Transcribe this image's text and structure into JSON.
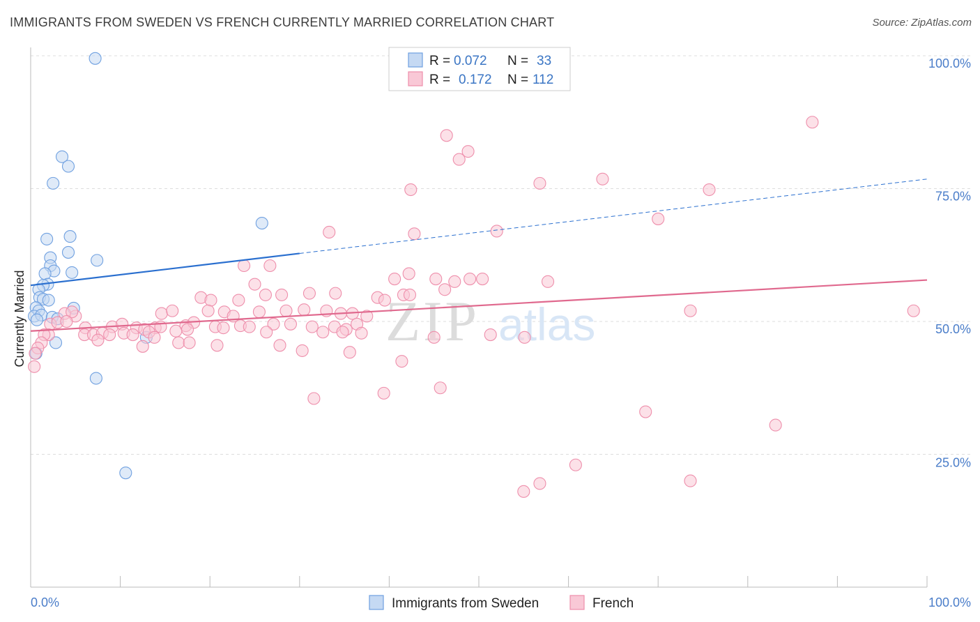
{
  "title": "IMMIGRANTS FROM SWEDEN VS FRENCH CURRENTLY MARRIED CORRELATION CHART",
  "source": "Source: ZipAtlas.com",
  "watermark": {
    "zip": "ZIP",
    "atlas": "atlas"
  },
  "chart_data": {
    "type": "scatter",
    "ylabel": "Currently Married",
    "xlabel": "",
    "xlim": [
      0,
      100
    ],
    "ylim": [
      0,
      100
    ],
    "x_tick_labels": [
      "0.0%",
      "100.0%"
    ],
    "y_tick_labels": [
      "25.0%",
      "50.0%",
      "75.0%",
      "100.0%"
    ],
    "y_tick_values": [
      25,
      50,
      75,
      100
    ],
    "grid": true,
    "legend_position": "top-center",
    "legend": [
      {
        "r_label": "R =",
        "r_value": "0.072",
        "n_label": "N =",
        "n_value": "33"
      },
      {
        "r_label": "R =",
        "r_value": "0.172",
        "n_label": "N =",
        "n_value": "112"
      }
    ],
    "series": [
      {
        "name": "Immigrants from Sweden",
        "color": "#6fa0e0",
        "fill": "#c5d9f3",
        "line_color": "#2a6fcf",
        "trend": {
          "x0": 0,
          "y0": 56.8,
          "x1": 30,
          "y1": 62.8,
          "dash_to_x": 100,
          "dash_to_y": 76.8
        },
        "points": [
          [
            7.2,
            99.5
          ],
          [
            3.5,
            81.0
          ],
          [
            4.2,
            79.2
          ],
          [
            2.5,
            76.0
          ],
          [
            25.8,
            68.5
          ],
          [
            1.8,
            65.5
          ],
          [
            4.4,
            66.0
          ],
          [
            4.2,
            63.0
          ],
          [
            7.4,
            61.5
          ],
          [
            2.2,
            62.0
          ],
          [
            2.2,
            60.5
          ],
          [
            2.6,
            59.5
          ],
          [
            4.6,
            59.2
          ],
          [
            1.6,
            59.0
          ],
          [
            1.9,
            57.0
          ],
          [
            1.4,
            56.8
          ],
          [
            0.9,
            56.0
          ],
          [
            1.0,
            54.5
          ],
          [
            1.4,
            54.2
          ],
          [
            2.0,
            54.0
          ],
          [
            0.6,
            52.6
          ],
          [
            0.9,
            52.0
          ],
          [
            4.8,
            52.5
          ],
          [
            0.4,
            51.0
          ],
          [
            1.2,
            51.2
          ],
          [
            2.4,
            50.8
          ],
          [
            0.7,
            50.3
          ],
          [
            3.0,
            50.5
          ],
          [
            2.8,
            46.0
          ],
          [
            12.9,
            47.0
          ],
          [
            0.6,
            44.0
          ],
          [
            7.3,
            39.3
          ],
          [
            10.6,
            21.5
          ]
        ]
      },
      {
        "name": "French",
        "color": "#ee8eab",
        "fill": "#f9c8d6",
        "line_color": "#e0698e",
        "trend": {
          "x0": 0,
          "y0": 48.2,
          "x1": 100,
          "y1": 57.8
        },
        "points": [
          [
            87.2,
            87.5
          ],
          [
            46.4,
            85.0
          ],
          [
            48.8,
            82.0
          ],
          [
            47.8,
            80.5
          ],
          [
            56.8,
            76.0
          ],
          [
            63.8,
            76.8
          ],
          [
            42.4,
            74.8
          ],
          [
            75.7,
            74.8
          ],
          [
            70.0,
            69.3
          ],
          [
            33.3,
            66.8
          ],
          [
            42.8,
            66.5
          ],
          [
            52.0,
            67.0
          ],
          [
            23.8,
            60.5
          ],
          [
            26.7,
            60.5
          ],
          [
            42.2,
            59.0
          ],
          [
            40.6,
            58.0
          ],
          [
            45.2,
            58.0
          ],
          [
            47.3,
            57.5
          ],
          [
            50.4,
            58.0
          ],
          [
            57.7,
            57.5
          ],
          [
            25.0,
            57.0
          ],
          [
            46.2,
            56.0
          ],
          [
            19.0,
            54.5
          ],
          [
            20.1,
            54.0
          ],
          [
            23.2,
            54.0
          ],
          [
            26.2,
            55.0
          ],
          [
            28.0,
            55.0
          ],
          [
            31.1,
            55.3
          ],
          [
            34.0,
            55.3
          ],
          [
            38.7,
            54.5
          ],
          [
            39.5,
            54.0
          ],
          [
            41.6,
            55.0
          ],
          [
            42.3,
            55.0
          ],
          [
            14.6,
            51.5
          ],
          [
            15.8,
            52.0
          ],
          [
            19.8,
            52.0
          ],
          [
            21.6,
            51.8
          ],
          [
            22.6,
            51.0
          ],
          [
            25.5,
            51.8
          ],
          [
            28.5,
            52.0
          ],
          [
            30.5,
            52.2
          ],
          [
            33.0,
            52.0
          ],
          [
            34.6,
            51.5
          ],
          [
            35.9,
            51.5
          ],
          [
            37.5,
            51.0
          ],
          [
            5.0,
            51.0
          ],
          [
            3.8,
            51.5
          ],
          [
            4.6,
            51.8
          ],
          [
            6.1,
            48.8
          ],
          [
            9.1,
            49.0
          ],
          [
            10.2,
            49.5
          ],
          [
            11.8,
            48.8
          ],
          [
            12.7,
            48.5
          ],
          [
            13.9,
            48.8
          ],
          [
            14.5,
            49.0
          ],
          [
            17.3,
            49.2
          ],
          [
            18.2,
            49.8
          ],
          [
            20.6,
            49.0
          ],
          [
            21.5,
            48.8
          ],
          [
            23.4,
            49.2
          ],
          [
            24.4,
            49.0
          ],
          [
            27.1,
            49.5
          ],
          [
            29.0,
            49.5
          ],
          [
            31.4,
            49.0
          ],
          [
            33.9,
            49.0
          ],
          [
            35.2,
            48.5
          ],
          [
            36.4,
            49.5
          ],
          [
            2.2,
            49.5
          ],
          [
            3.0,
            49.8
          ],
          [
            4.0,
            50.0
          ],
          [
            6.0,
            47.5
          ],
          [
            7.0,
            47.5
          ],
          [
            8.0,
            47.8
          ],
          [
            8.8,
            47.5
          ],
          [
            10.4,
            47.8
          ],
          [
            11.4,
            47.5
          ],
          [
            13.2,
            48.0
          ],
          [
            13.8,
            47.0
          ],
          [
            16.2,
            48.2
          ],
          [
            17.5,
            48.5
          ],
          [
            26.3,
            48.0
          ],
          [
            32.6,
            48.0
          ],
          [
            34.8,
            48.0
          ],
          [
            36.9,
            47.8
          ],
          [
            45.0,
            47.0
          ],
          [
            51.3,
            47.5
          ],
          [
            55.1,
            47.0
          ],
          [
            2.0,
            47.5
          ],
          [
            7.5,
            46.5
          ],
          [
            12.5,
            45.3
          ],
          [
            16.5,
            46.0
          ],
          [
            17.7,
            46.0
          ],
          [
            20.8,
            45.5
          ],
          [
            27.8,
            45.5
          ],
          [
            30.3,
            44.5
          ],
          [
            35.6,
            44.2
          ],
          [
            1.5,
            47.5
          ],
          [
            1.2,
            46.0
          ],
          [
            0.8,
            45.0
          ],
          [
            0.5,
            44.0
          ],
          [
            0.4,
            41.5
          ],
          [
            41.4,
            42.5
          ],
          [
            45.7,
            37.5
          ],
          [
            39.4,
            36.5
          ],
          [
            31.6,
            35.5
          ],
          [
            68.6,
            33.0
          ],
          [
            83.1,
            30.5
          ],
          [
            60.8,
            23.0
          ],
          [
            73.6,
            20.0
          ],
          [
            56.8,
            19.5
          ],
          [
            55.0,
            18.0
          ],
          [
            98.5,
            52.0
          ],
          [
            73.6,
            52.0
          ],
          [
            49.0,
            58.0
          ]
        ]
      }
    ]
  },
  "bottom_legend": [
    {
      "label": "Immigrants from Sweden"
    },
    {
      "label": "French"
    }
  ]
}
